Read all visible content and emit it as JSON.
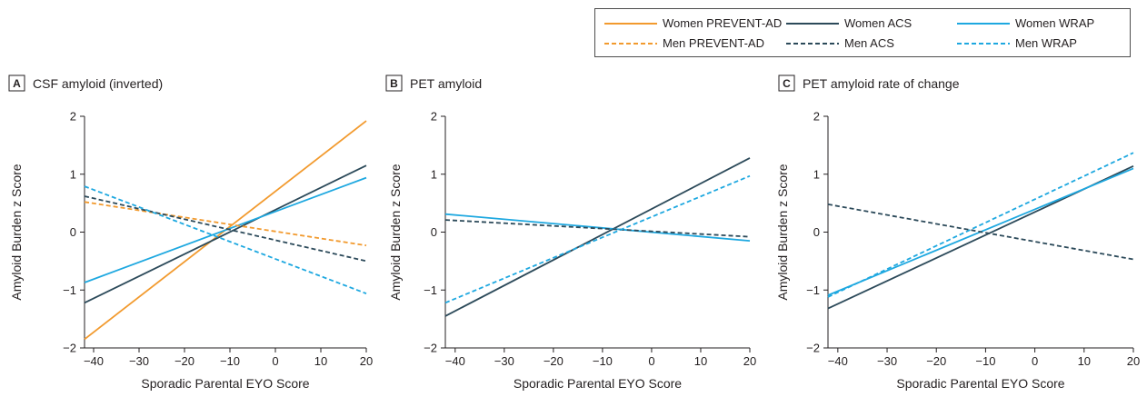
{
  "legend": [
    {
      "name": "Women PREVENT-AD",
      "color": "#f29a2e",
      "dash": false
    },
    {
      "name": "Women ACS",
      "color": "#2c4a5a",
      "dash": false
    },
    {
      "name": "Women WRAP",
      "color": "#1ea8e0",
      "dash": false
    },
    {
      "name": "Men PREVENT-AD",
      "color": "#f29a2e",
      "dash": true
    },
    {
      "name": "Men ACS",
      "color": "#2c4a5a",
      "dash": true
    },
    {
      "name": "Men WRAP",
      "color": "#1ea8e0",
      "dash": true
    }
  ],
  "chart_data": [
    {
      "type": "line",
      "letter": "A",
      "title": "CSF amyloid (inverted)",
      "xlabel": "Sporadic Parental EYO Score",
      "ylabel": "Amyloid Burden z Score",
      "xlim": [
        -42,
        20
      ],
      "ylim": [
        -2,
        2
      ],
      "xticks": [
        -40,
        -30,
        -20,
        -10,
        0,
        10,
        20
      ],
      "yticks": [
        -2,
        -1,
        0,
        1,
        2
      ],
      "legend_position": "top-right",
      "grid": false,
      "series": [
        {
          "name": "Women PREVENT-AD",
          "color": "#f29a2e",
          "dash": false,
          "x": [
            -42,
            20
          ],
          "y": [
            -1.85,
            1.92
          ]
        },
        {
          "name": "Women ACS",
          "color": "#2c4a5a",
          "dash": false,
          "x": [
            -42,
            20
          ],
          "y": [
            -1.22,
            1.15
          ]
        },
        {
          "name": "Women WRAP",
          "color": "#1ea8e0",
          "dash": false,
          "x": [
            -42,
            20
          ],
          "y": [
            -0.87,
            0.94
          ]
        },
        {
          "name": "Men PREVENT-AD",
          "color": "#f29a2e",
          "dash": true,
          "x": [
            -42,
            20
          ],
          "y": [
            0.52,
            -0.23
          ]
        },
        {
          "name": "Men ACS",
          "color": "#2c4a5a",
          "dash": true,
          "x": [
            -42,
            20
          ],
          "y": [
            0.62,
            -0.5
          ]
        },
        {
          "name": "Men WRAP",
          "color": "#1ea8e0",
          "dash": true,
          "x": [
            -42,
            20
          ],
          "y": [
            0.79,
            -1.06
          ]
        }
      ]
    },
    {
      "type": "line",
      "letter": "B",
      "title": "PET amyloid",
      "xlabel": "Sporadic Parental EYO Score",
      "ylabel": "Amyloid Burden z Score",
      "xlim": [
        -42,
        20
      ],
      "ylim": [
        -2,
        2
      ],
      "xticks": [
        -40,
        -30,
        -20,
        -10,
        0,
        10,
        20
      ],
      "yticks": [
        -2,
        -1,
        0,
        1,
        2
      ],
      "legend_position": "top-right",
      "grid": false,
      "series": [
        {
          "name": "Women ACS",
          "color": "#2c4a5a",
          "dash": false,
          "x": [
            -42,
            20
          ],
          "y": [
            -1.45,
            1.28
          ]
        },
        {
          "name": "Women WRAP",
          "color": "#1ea8e0",
          "dash": false,
          "x": [
            -42,
            20
          ],
          "y": [
            0.31,
            -0.15
          ]
        },
        {
          "name": "Men ACS",
          "color": "#2c4a5a",
          "dash": true,
          "x": [
            -42,
            20
          ],
          "y": [
            0.21,
            -0.08
          ]
        },
        {
          "name": "Men WRAP",
          "color": "#1ea8e0",
          "dash": true,
          "x": [
            -42,
            20
          ],
          "y": [
            -1.22,
            0.97
          ]
        }
      ]
    },
    {
      "type": "line",
      "letter": "C",
      "title": "PET amyloid rate of change",
      "xlabel": "Sporadic Parental EYO Score",
      "ylabel": "Amyloid Burden z Score",
      "xlim": [
        -42,
        20
      ],
      "ylim": [
        -2,
        2
      ],
      "xticks": [
        -40,
        -30,
        -20,
        -10,
        0,
        10,
        20
      ],
      "yticks": [
        -2,
        -1,
        0,
        1,
        2
      ],
      "legend_position": "top-right",
      "grid": false,
      "series": [
        {
          "name": "Women ACS",
          "color": "#2c4a5a",
          "dash": false,
          "x": [
            -42,
            20
          ],
          "y": [
            -1.32,
            1.14
          ]
        },
        {
          "name": "Women WRAP",
          "color": "#1ea8e0",
          "dash": false,
          "x": [
            -42,
            20
          ],
          "y": [
            -1.09,
            1.1
          ]
        },
        {
          "name": "Men ACS",
          "color": "#2c4a5a",
          "dash": true,
          "x": [
            -42,
            20
          ],
          "y": [
            0.48,
            -0.47
          ]
        },
        {
          "name": "Men WRAP",
          "color": "#1ea8e0",
          "dash": true,
          "x": [
            -42,
            20
          ],
          "y": [
            -1.12,
            1.37
          ]
        }
      ]
    }
  ]
}
